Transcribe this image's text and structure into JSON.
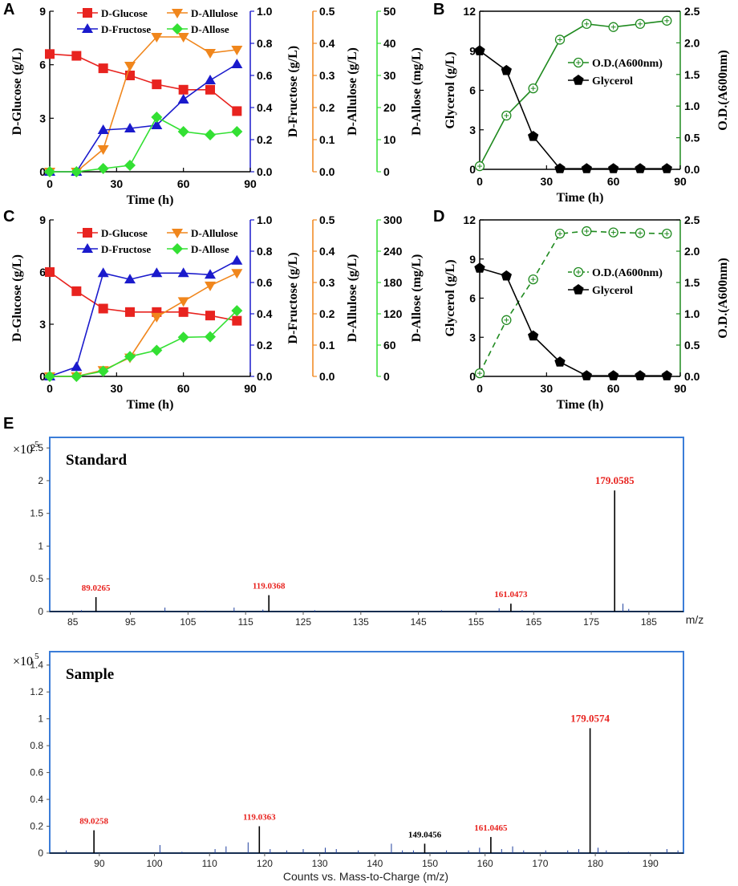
{
  "panels": {
    "A": {
      "label": "A",
      "xlabel": "Time (h)",
      "xlim": [
        0,
        90
      ],
      "xticks": [
        0,
        30,
        60,
        90
      ],
      "x": [
        0,
        12,
        24,
        36,
        48,
        60,
        72,
        84
      ],
      "axes": [
        {
          "key": "glucose",
          "label": "D-Glucose (g/L)",
          "color": "#000000",
          "ylim": [
            0,
            9
          ],
          "ticks": [
            "0",
            "3",
            "6",
            "9"
          ]
        },
        {
          "key": "fructose",
          "label": "D-Fructose (g/L)",
          "color": "#1a1acc",
          "ylim": [
            0,
            1.0
          ],
          "ticks": [
            "0.0",
            "0.2",
            "0.4",
            "0.6",
            "0.8",
            "1.0"
          ]
        },
        {
          "key": "allulose",
          "label": "D-Allulose (g/L)",
          "color": "#f0861c",
          "ylim": [
            0,
            0.5
          ],
          "ticks": [
            "0.0",
            "0.1",
            "0.2",
            "0.3",
            "0.4",
            "0.5"
          ]
        },
        {
          "key": "allose",
          "label": "D-Allose (mg/L)",
          "color": "#33e033",
          "ylim": [
            0,
            50
          ],
          "ticks": [
            "0",
            "10",
            "20",
            "30",
            "40",
            "50"
          ]
        }
      ],
      "series": [
        {
          "name": "D-Glucose",
          "axis": "glucose",
          "color": "#e8231f",
          "marker": "square",
          "values": [
            6.6,
            6.5,
            5.8,
            5.4,
            4.9,
            4.6,
            4.6,
            3.4
          ]
        },
        {
          "name": "D-Allulose",
          "axis": "allulose",
          "color": "#f0861c",
          "marker": "triangle-down",
          "values": [
            0.0,
            0.0,
            0.07,
            0.33,
            0.42,
            0.42,
            0.37,
            0.38
          ]
        },
        {
          "name": "D-Fructose",
          "axis": "fructose",
          "color": "#1a1acc",
          "marker": "triangle-up",
          "values": [
            0.0,
            0.0,
            0.26,
            0.27,
            0.29,
            0.45,
            0.57,
            0.67
          ]
        },
        {
          "name": "D-Allose",
          "axis": "allose",
          "color": "#33e033",
          "marker": "diamond",
          "values": [
            0,
            0,
            1,
            2,
            17,
            12.5,
            11.5,
            12.5
          ]
        }
      ]
    },
    "B": {
      "label": "B",
      "xlabel": "Time (h)",
      "xlim": [
        0,
        90
      ],
      "xticks": [
        0,
        30,
        60,
        90
      ],
      "x": [
        0,
        12,
        24,
        36,
        48,
        60,
        72,
        84
      ],
      "axes": [
        {
          "key": "glycerol",
          "label": "Glycerol (g/L)",
          "color": "#000000",
          "ylim": [
            0,
            12
          ],
          "ticks": [
            "0",
            "3",
            "6",
            "9",
            "12"
          ]
        },
        {
          "key": "od",
          "label": "O.D.(A600nm)",
          "color": "#1f8a1f",
          "ylim": [
            0,
            2.5
          ],
          "ticks": [
            "0.0",
            "0.5",
            "1.0",
            "1.5",
            "2.0",
            "2.5"
          ]
        }
      ],
      "series": [
        {
          "name": "O.D.(A600nm)",
          "axis": "od",
          "color": "#1f8a1f",
          "marker": "circle-open",
          "dashed": false,
          "values": [
            0.05,
            0.85,
            1.28,
            2.05,
            2.3,
            2.25,
            2.3,
            2.35
          ]
        },
        {
          "name": "Glycerol",
          "axis": "glycerol",
          "color": "#000000",
          "marker": "pentagon",
          "dashed": false,
          "values": [
            9.0,
            7.5,
            2.5,
            0.05,
            0.05,
            0.05,
            0.05,
            0.05
          ]
        }
      ]
    },
    "C": {
      "label": "C",
      "xlabel": "Time (h)",
      "xlim": [
        0,
        90
      ],
      "xticks": [
        0,
        30,
        60,
        90
      ],
      "x": [
        0,
        12,
        24,
        36,
        48,
        60,
        72,
        84
      ],
      "axes": [
        {
          "key": "glucose",
          "label": "D-Glucose (g/L)",
          "color": "#000000",
          "ylim": [
            0,
            9
          ],
          "ticks": [
            "0",
            "3",
            "6",
            "9"
          ]
        },
        {
          "key": "fructose",
          "label": "D-Fructose (g/L)",
          "color": "#1a1acc",
          "ylim": [
            0,
            1.0
          ],
          "ticks": [
            "0.0",
            "0.2",
            "0.4",
            "0.6",
            "0.8",
            "1.0"
          ]
        },
        {
          "key": "allulose",
          "label": "D-Allulose (g/L)",
          "color": "#f0861c",
          "ylim": [
            0,
            0.5
          ],
          "ticks": [
            "0.0",
            "0.1",
            "0.2",
            "0.3",
            "0.4",
            "0.5"
          ]
        },
        {
          "key": "allose",
          "label": "D-Allose (mg/L)",
          "color": "#33e033",
          "ylim": [
            0,
            300
          ],
          "ticks": [
            "0",
            "60",
            "120",
            "180",
            "240",
            "300"
          ]
        }
      ],
      "series": [
        {
          "name": "D-Glucose",
          "axis": "glucose",
          "color": "#e8231f",
          "marker": "square",
          "values": [
            6.0,
            4.9,
            3.9,
            3.7,
            3.7,
            3.7,
            3.5,
            3.2
          ]
        },
        {
          "name": "D-Allulose",
          "axis": "allulose",
          "color": "#f0861c",
          "marker": "triangle-down",
          "values": [
            0.0,
            0.0,
            0.02,
            0.06,
            0.19,
            0.24,
            0.29,
            0.33
          ]
        },
        {
          "name": "D-Fructose",
          "axis": "fructose",
          "color": "#1a1acc",
          "marker": "triangle-up",
          "values": [
            0.0,
            0.06,
            0.66,
            0.62,
            0.66,
            0.66,
            0.65,
            0.74
          ]
        },
        {
          "name": "D-Allose",
          "axis": "allose",
          "color": "#33e033",
          "marker": "diamond",
          "values": [
            0,
            0,
            10,
            38,
            50,
            75,
            76,
            126
          ]
        }
      ]
    },
    "D": {
      "label": "D",
      "xlabel": "Time (h)",
      "xlim": [
        0,
        90
      ],
      "xticks": [
        0,
        30,
        60,
        90
      ],
      "x": [
        0,
        12,
        24,
        36,
        48,
        60,
        72,
        84
      ],
      "axes": [
        {
          "key": "glycerol",
          "label": "Glycerol (g/L)",
          "color": "#000000",
          "ylim": [
            0,
            12
          ],
          "ticks": [
            "0",
            "3",
            "6",
            "9",
            "12"
          ]
        },
        {
          "key": "od",
          "label": "O.D.(A600nm)",
          "color": "#1f8a1f",
          "ylim": [
            0,
            2.5
          ],
          "ticks": [
            "0.0",
            "0.5",
            "1.0",
            "1.5",
            "2.0",
            "2.5"
          ]
        }
      ],
      "series": [
        {
          "name": "O.D.(A600nm)",
          "axis": "od",
          "color": "#1f8a1f",
          "marker": "circle-open",
          "dashed": true,
          "values": [
            0.05,
            0.9,
            1.55,
            2.28,
            2.32,
            2.3,
            2.29,
            2.28
          ]
        },
        {
          "name": "Glycerol",
          "axis": "glycerol",
          "color": "#000000",
          "marker": "pentagon",
          "dashed": false,
          "values": [
            8.3,
            7.7,
            3.1,
            1.1,
            0.05,
            0.05,
            0.05,
            0.05
          ]
        }
      ]
    }
  },
  "panel_e": {
    "label": "E",
    "exponent": "×10",
    "exponent_power": "5",
    "xlabel": "Counts vs. Mass-to-Charge (m/z)",
    "unit": "m/z",
    "standard": {
      "title": "Standard",
      "xlim": [
        81,
        191
      ],
      "ylim": [
        0,
        2.6
      ],
      "xticks": [
        "85",
        "95",
        "105",
        "115",
        "125",
        "135",
        "145",
        "155",
        "165",
        "175",
        "185"
      ],
      "yticks": [
        "0",
        "0.5",
        "1",
        "1.5",
        "2",
        "2.5"
      ],
      "major_peaks": [
        {
          "mz": 89.0265,
          "intensity": 0.22,
          "label": "89.0265",
          "color": "#e8231f"
        },
        {
          "mz": 119.0368,
          "intensity": 0.25,
          "label": "119.0368",
          "color": "#e8231f"
        },
        {
          "mz": 161.0473,
          "intensity": 0.12,
          "label": "161.0473",
          "color": "#e8231f"
        },
        {
          "mz": 179.0585,
          "intensity": 1.85,
          "label": "179.0585",
          "color": "#e8231f"
        }
      ],
      "minor_peaks": [
        [
          86.5,
          0.02
        ],
        [
          101,
          0.06
        ],
        [
          108,
          0.015
        ],
        [
          113,
          0.06
        ],
        [
          118,
          0.03
        ],
        [
          127,
          0.02
        ],
        [
          131,
          0.015
        ],
        [
          149,
          0.02
        ],
        [
          159,
          0.05
        ],
        [
          163,
          0.02
        ],
        [
          180.5,
          0.12
        ],
        [
          181.5,
          0.04
        ]
      ]
    },
    "sample": {
      "title": "Sample",
      "xlim": [
        81,
        196
      ],
      "ylim": [
        0,
        1.5
      ],
      "xticks": [
        "90",
        "100",
        "110",
        "120",
        "130",
        "140",
        "150",
        "160",
        "170",
        "180",
        "190"
      ],
      "yticks": [
        "0",
        "0.2",
        "0.4",
        "0.6",
        "0.8",
        "1",
        "1.2",
        "1.4"
      ],
      "major_peaks": [
        {
          "mz": 89.0258,
          "intensity": 0.17,
          "label": "89.0258",
          "color": "#e8231f"
        },
        {
          "mz": 119.0363,
          "intensity": 0.2,
          "label": "119.0363",
          "color": "#e8231f"
        },
        {
          "mz": 149.0456,
          "intensity": 0.07,
          "label": "149.0456",
          "color": "#000000"
        },
        {
          "mz": 161.0465,
          "intensity": 0.12,
          "label": "161.0465",
          "color": "#e8231f"
        },
        {
          "mz": 179.0574,
          "intensity": 0.93,
          "label": "179.0574",
          "color": "#e8231f"
        }
      ],
      "minor_peaks": [
        [
          84,
          0.02
        ],
        [
          101,
          0.06
        ],
        [
          105,
          0.01
        ],
        [
          111,
          0.03
        ],
        [
          113,
          0.05
        ],
        [
          117,
          0.08
        ],
        [
          121,
          0.03
        ],
        [
          124,
          0.02
        ],
        [
          127,
          0.03
        ],
        [
          131,
          0.04
        ],
        [
          133,
          0.03
        ],
        [
          137,
          0.02
        ],
        [
          143,
          0.07
        ],
        [
          145,
          0.02
        ],
        [
          147,
          0.02
        ],
        [
          153,
          0.02
        ],
        [
          157,
          0.02
        ],
        [
          159,
          0.04
        ],
        [
          163,
          0.03
        ],
        [
          165,
          0.05
        ],
        [
          167,
          0.02
        ],
        [
          171,
          0.02
        ],
        [
          175,
          0.02
        ],
        [
          177,
          0.03
        ],
        [
          180.5,
          0.04
        ],
        [
          182,
          0.02
        ],
        [
          186,
          0.01
        ],
        [
          193,
          0.03
        ],
        [
          195,
          0.02
        ]
      ]
    }
  }
}
